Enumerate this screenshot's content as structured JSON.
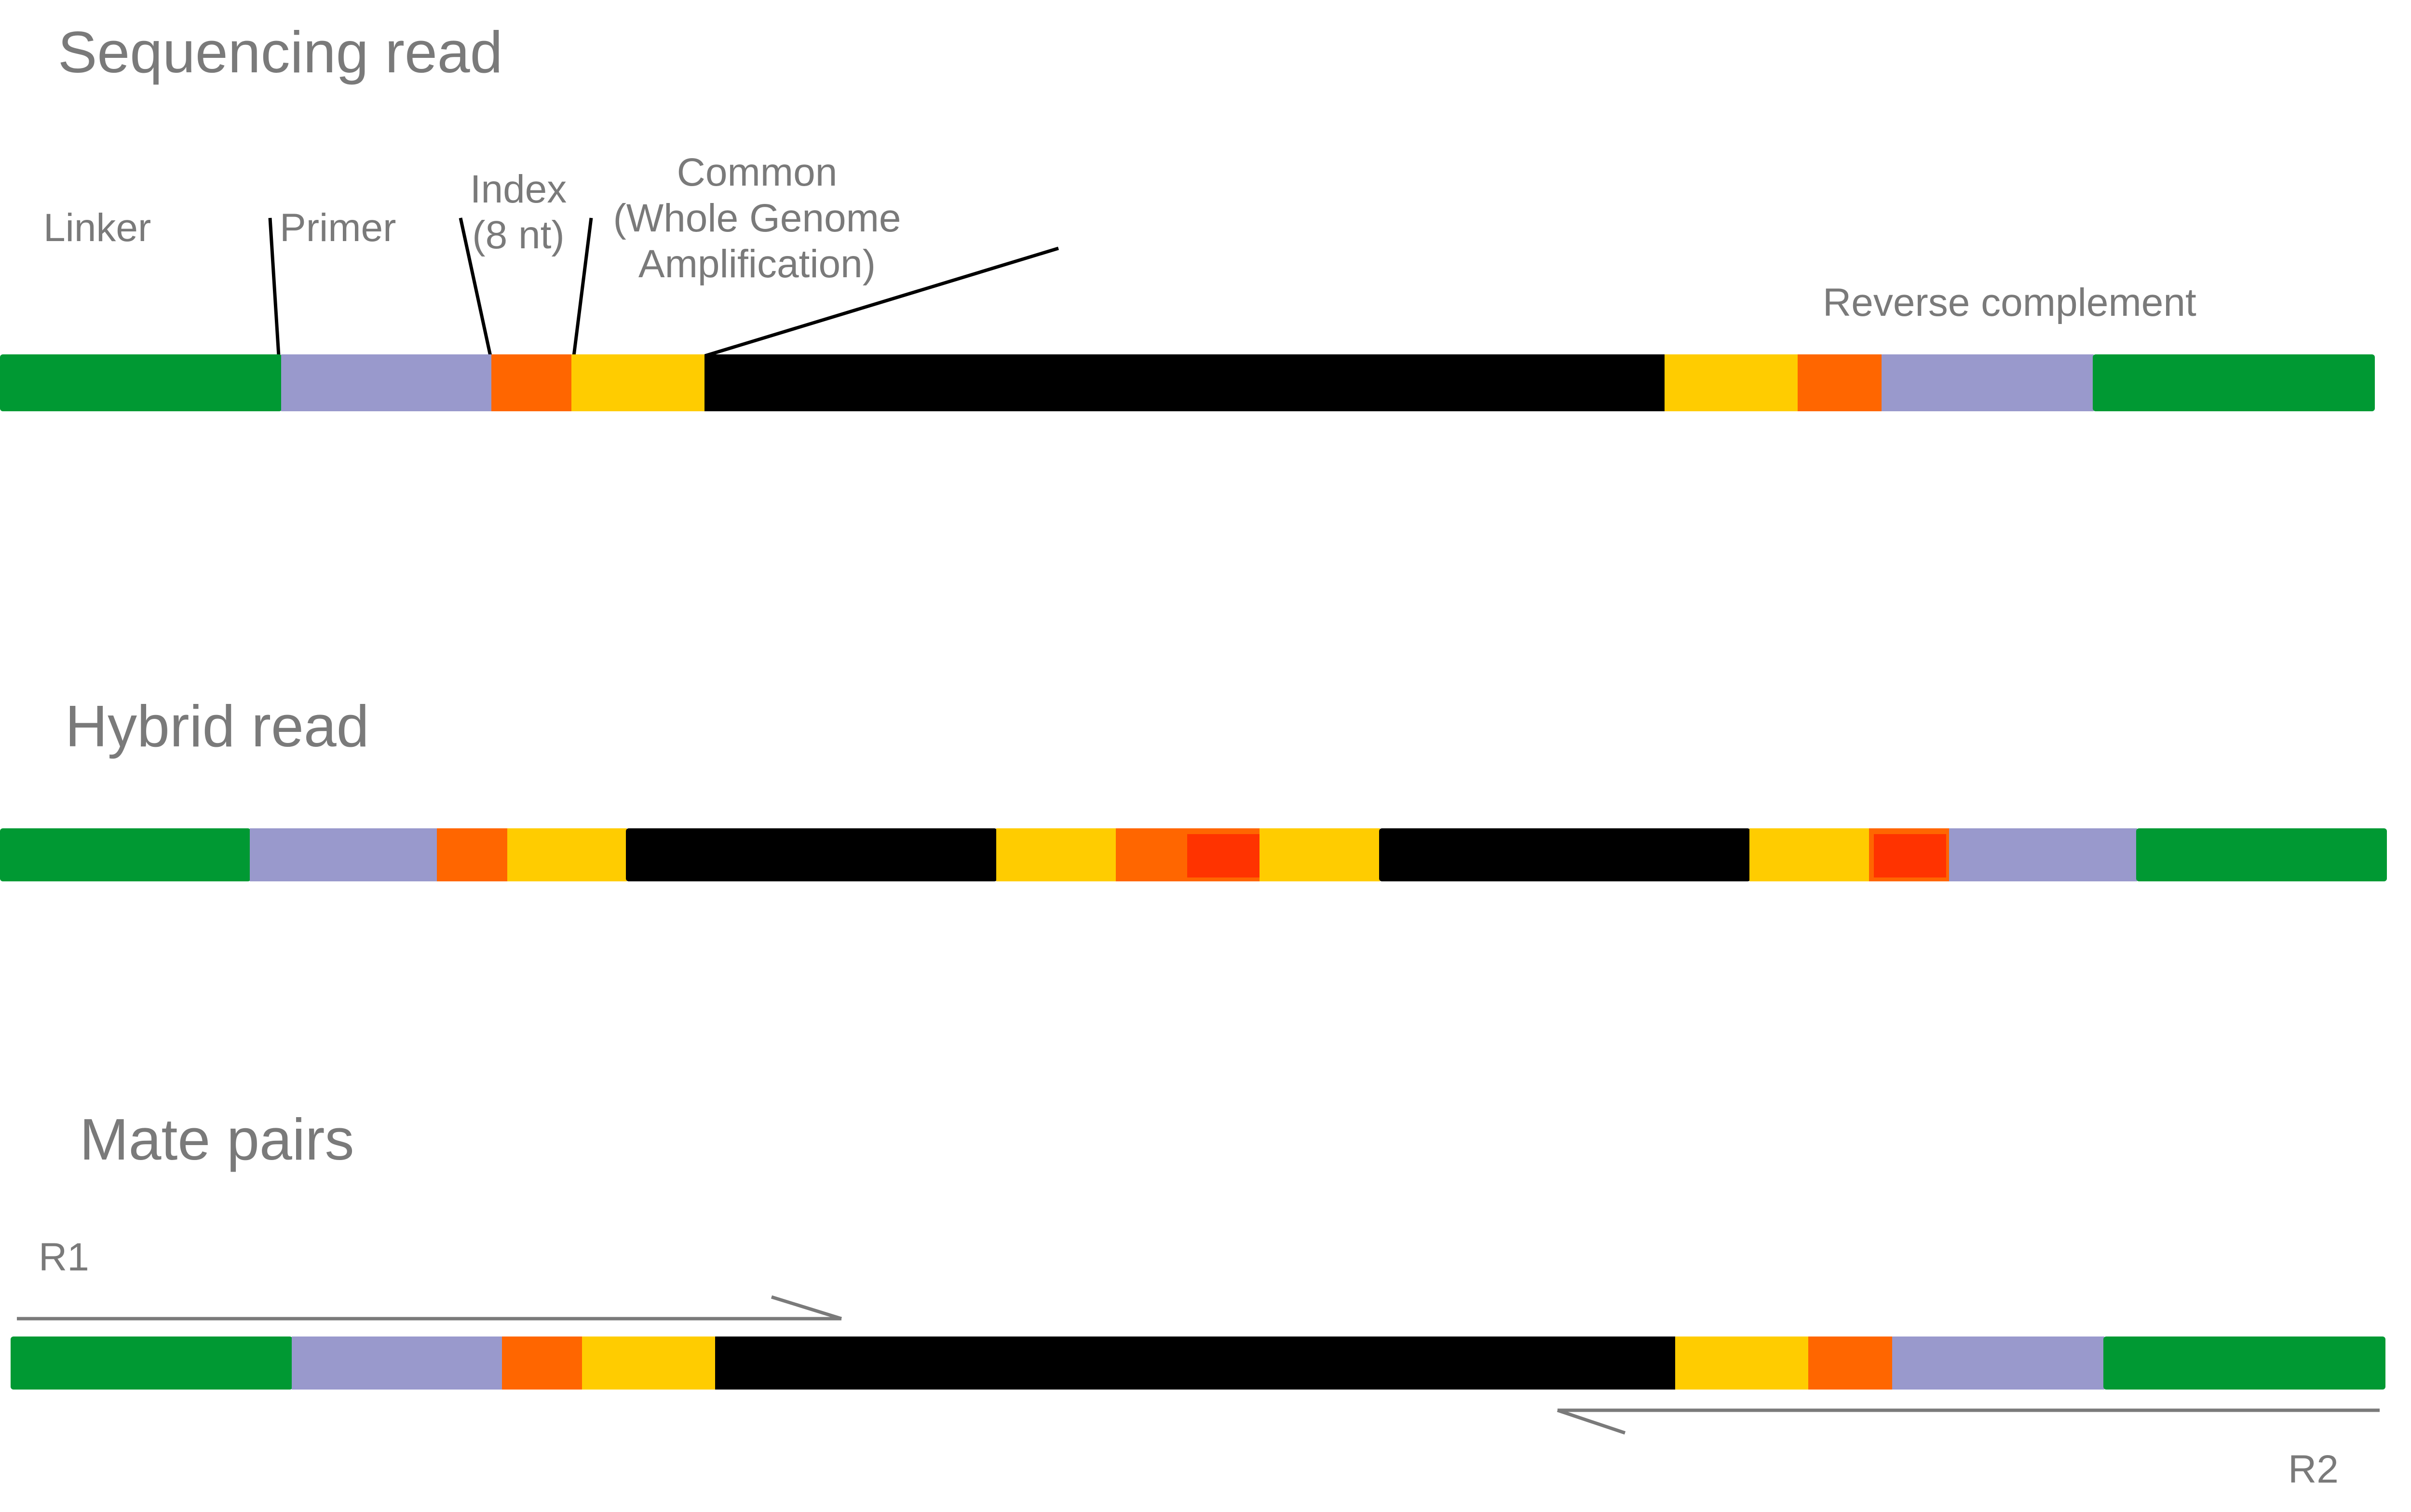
{
  "colors": {
    "linker": "#009933",
    "primer": "#9999cc",
    "index": "#ff6600",
    "index_inner": "#ff3300",
    "common": "#ffcc00",
    "insert": "#000000",
    "text": "#7a7a7a"
  },
  "sections": {
    "sequencing": {
      "title": "Sequencing read",
      "labels": {
        "linker": "Linker",
        "primer": "Primer",
        "index_line1": "Index",
        "index_line2": "(8 nt)",
        "common_line1": "Common",
        "common_line2": "(Whole Genome",
        "common_line3": "Amplification)",
        "reverse": "Reverse complement"
      }
    },
    "hybrid": {
      "title": "Hybrid read"
    },
    "mate": {
      "title": "Mate pairs",
      "r1": "R1",
      "r2": "R2"
    }
  },
  "reads": {
    "sequencing": [
      "linker",
      "primer",
      "index",
      "common",
      "insert",
      "common",
      "index",
      "primer",
      "linker"
    ],
    "hybrid": [
      "linker",
      "primer",
      "index",
      "common",
      "insert",
      "common",
      "index",
      "common",
      "insert",
      "common",
      "index",
      "primer",
      "linker"
    ],
    "mate": [
      "linker",
      "primer",
      "index",
      "common",
      "insert",
      "common",
      "index",
      "primer",
      "linker"
    ]
  }
}
